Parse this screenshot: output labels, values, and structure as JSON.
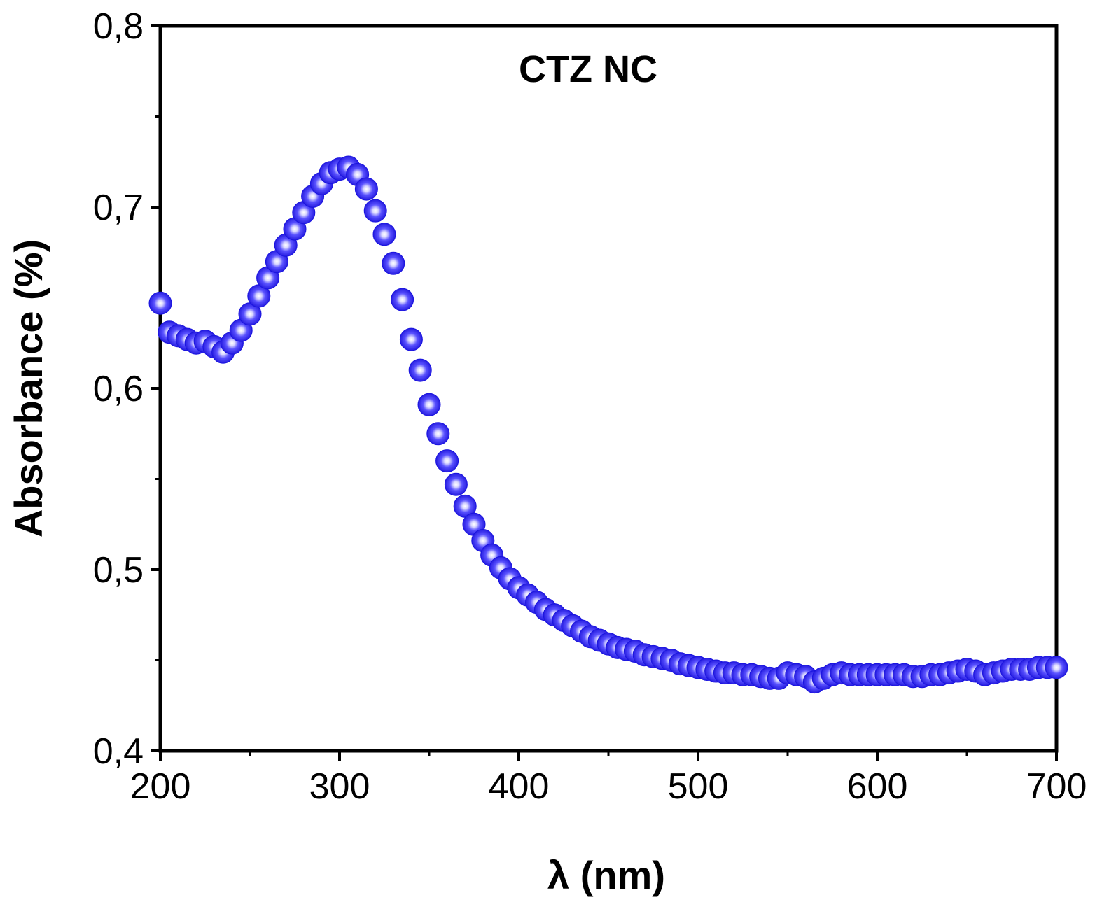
{
  "chart_data": {
    "type": "scatter",
    "title": "CTZ NC",
    "xlabel": "λ (nm)",
    "ylabel": "Absorbance (%)",
    "xlim": [
      200,
      700
    ],
    "ylim": [
      0.4,
      0.8
    ],
    "xticks": [
      200,
      300,
      400,
      500,
      600,
      700
    ],
    "xtick_labels": [
      "200",
      "300",
      "400",
      "500",
      "600",
      "700"
    ],
    "yticks": [
      0.4,
      0.5,
      0.6,
      0.7,
      0.8
    ],
    "ytick_labels": [
      "0,4",
      "0,5",
      "0,6",
      "0,7",
      "0,8"
    ],
    "grid": false,
    "legend": "none",
    "marker_color": "#1a14e0",
    "x": [
      200,
      205,
      210,
      215,
      220,
      225,
      230,
      235,
      240,
      245,
      250,
      255,
      260,
      265,
      270,
      275,
      280,
      285,
      290,
      295,
      300,
      305,
      310,
      315,
      320,
      325,
      330,
      335,
      340,
      345,
      350,
      355,
      360,
      365,
      370,
      375,
      380,
      385,
      390,
      395,
      400,
      405,
      410,
      415,
      420,
      425,
      430,
      435,
      440,
      445,
      450,
      455,
      460,
      465,
      470,
      475,
      480,
      485,
      490,
      495,
      500,
      505,
      510,
      515,
      520,
      525,
      530,
      535,
      540,
      545,
      550,
      555,
      560,
      565,
      570,
      575,
      580,
      585,
      590,
      595,
      600,
      605,
      610,
      615,
      620,
      625,
      630,
      635,
      640,
      645,
      650,
      655,
      660,
      665,
      670,
      675,
      680,
      685,
      690,
      695,
      700
    ],
    "y": [
      0.647,
      0.631,
      0.629,
      0.627,
      0.625,
      0.626,
      0.623,
      0.62,
      0.625,
      0.632,
      0.641,
      0.651,
      0.661,
      0.67,
      0.679,
      0.688,
      0.697,
      0.706,
      0.713,
      0.719,
      0.721,
      0.722,
      0.718,
      0.71,
      0.698,
      0.685,
      0.669,
      0.649,
      0.627,
      0.61,
      0.591,
      0.575,
      0.56,
      0.547,
      0.535,
      0.525,
      0.516,
      0.508,
      0.501,
      0.495,
      0.49,
      0.486,
      0.482,
      0.478,
      0.475,
      0.472,
      0.469,
      0.466,
      0.463,
      0.461,
      0.459,
      0.457,
      0.456,
      0.455,
      0.453,
      0.452,
      0.451,
      0.45,
      0.448,
      0.447,
      0.446,
      0.445,
      0.444,
      0.443,
      0.443,
      0.442,
      0.442,
      0.441,
      0.44,
      0.44,
      0.443,
      0.442,
      0.441,
      0.438,
      0.44,
      0.442,
      0.443,
      0.442,
      0.442,
      0.442,
      0.442,
      0.442,
      0.442,
      0.442,
      0.441,
      0.441,
      0.442,
      0.442,
      0.443,
      0.444,
      0.445,
      0.444,
      0.442,
      0.443,
      0.444,
      0.445,
      0.445,
      0.445,
      0.446,
      0.446,
      0.446
    ]
  }
}
